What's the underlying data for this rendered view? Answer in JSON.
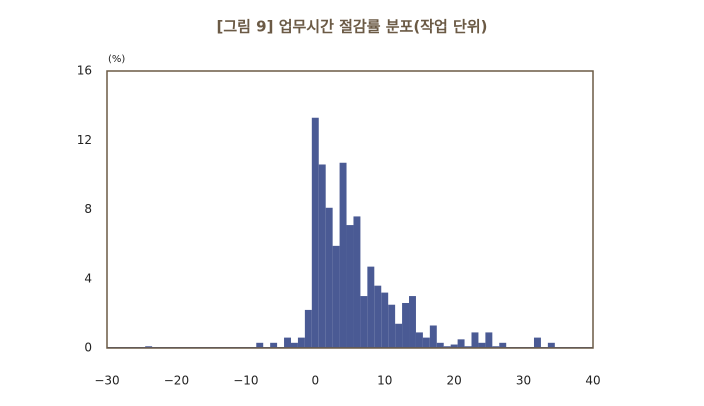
{
  "chart_data": {
    "type": "histogram",
    "title": "[그림 9] 업무시간 절감률 분포(작업 단위)",
    "y_label": "(%)",
    "color": "#4a5a94",
    "frame_color": "#6b5a45",
    "bins": [
      -24.5,
      -23.5,
      -22.5,
      -21.5,
      -20.5,
      -19.5,
      -18.5,
      -17.5,
      -16.5,
      -15.5,
      -14.5,
      -13.5,
      -12.5,
      -11.5,
      -10.5,
      -9.5,
      -8.5,
      -7.5,
      -6.5,
      -5.5,
      -4.5,
      -3.5,
      -2.5,
      -1.5,
      -0.5,
      0.5,
      1.5,
      2.5,
      3.5,
      4.5,
      5.5,
      6.5,
      7.5,
      8.5,
      9.5,
      10.5,
      11.5,
      12.5,
      13.5,
      14.5,
      15.5,
      16.5,
      17.5,
      18.5,
      19.5,
      20.5,
      21.5,
      22.5,
      23.5,
      24.5,
      25.5,
      26.5,
      27.5,
      28.5,
      29.5,
      30.5,
      31.5,
      32.5,
      33.5,
      34.5,
      35.5,
      36.5
    ],
    "counts": [
      0.1,
      0,
      0,
      0,
      0,
      0,
      0,
      0,
      0,
      0,
      0,
      0,
      0,
      0,
      0,
      0,
      0.3,
      0,
      0.3,
      0,
      0.6,
      0.3,
      0.6,
      2.2,
      13.3,
      10.6,
      8.1,
      5.9,
      10.7,
      7.1,
      7.6,
      3.0,
      4.7,
      3.6,
      3.2,
      2.5,
      1.4,
      2.6,
      3.0,
      0.9,
      0.6,
      1.3,
      0.3,
      0.1,
      0.2,
      0.5,
      0.1,
      0.9,
      0.3,
      0.9,
      0.1,
      0.3,
      0,
      0,
      0,
      0,
      0.6,
      0,
      0.3,
      0,
      0
    ],
    "xlim": [
      -30,
      40
    ],
    "ylim": [
      0,
      16
    ],
    "xticks": [
      {
        "value": -30,
        "label": "−30"
      },
      {
        "value": -20,
        "label": "−20"
      },
      {
        "value": -10,
        "label": "−10"
      },
      0,
      10,
      20,
      30,
      40
    ],
    "yticks": [
      0,
      4,
      8,
      12,
      16
    ]
  }
}
